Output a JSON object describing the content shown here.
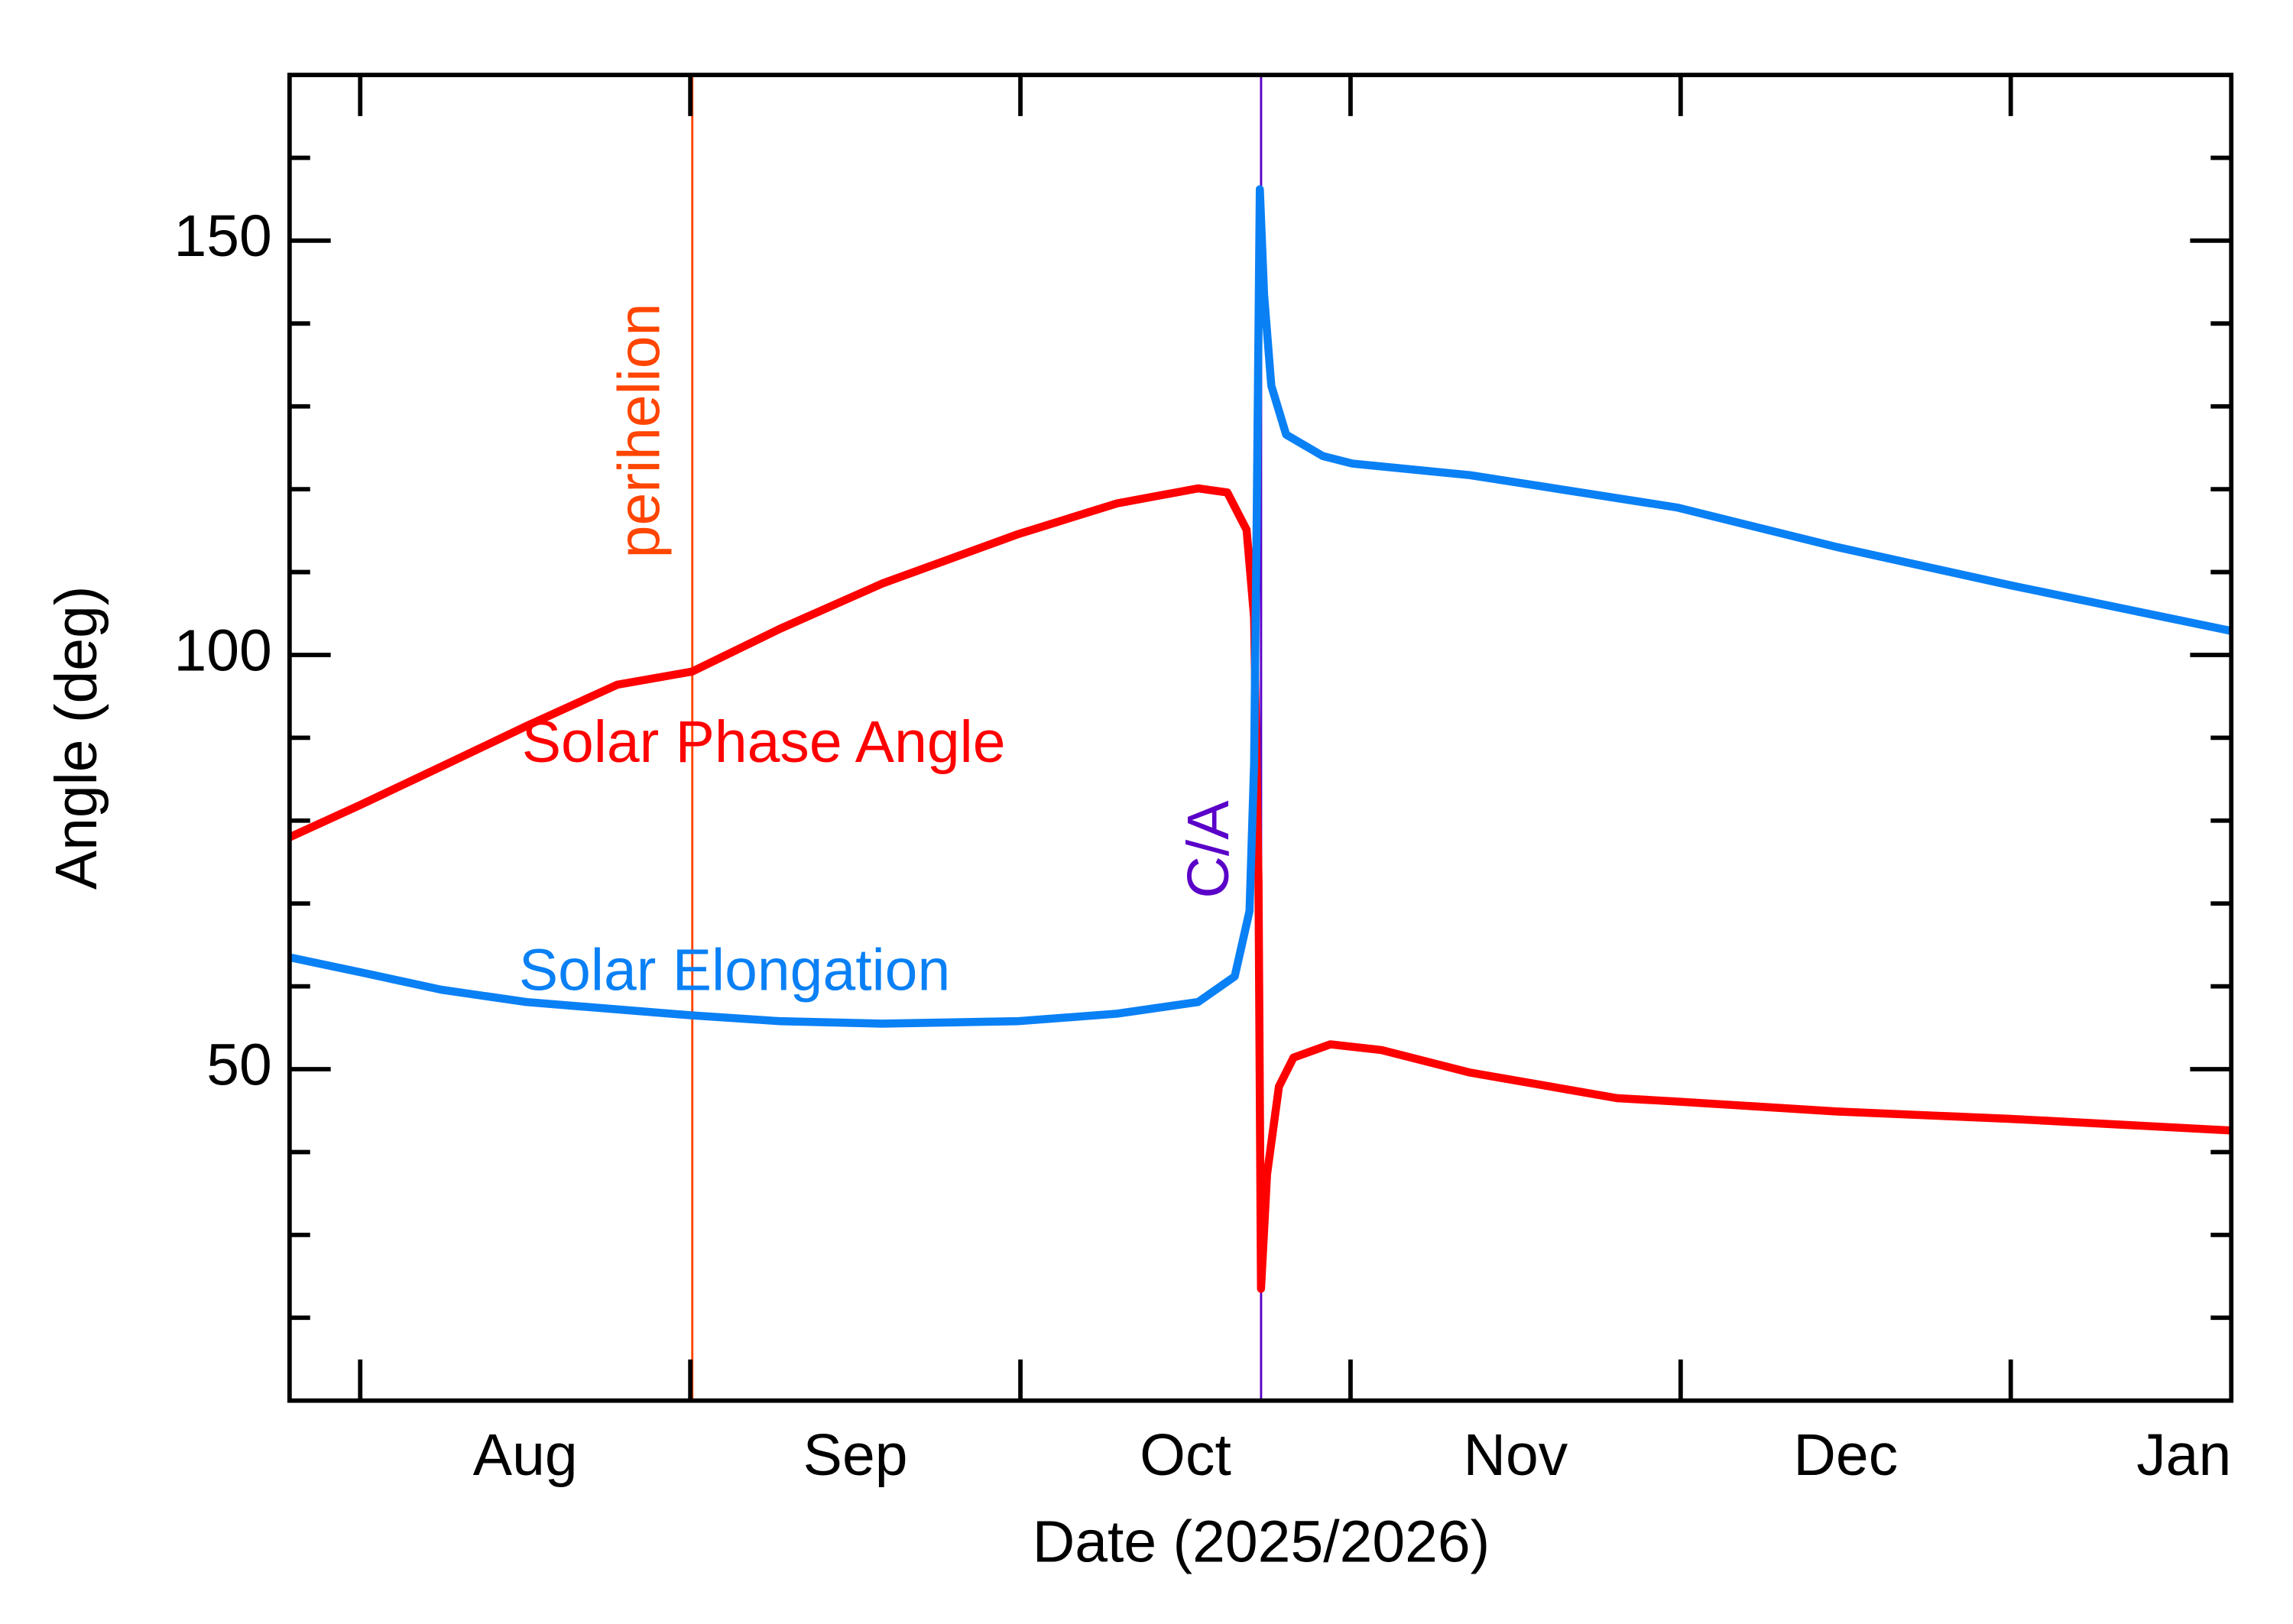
{
  "chart_data": {
    "type": "line",
    "x_label": "Date (2025/2026)",
    "y_label": "Angle (deg)",
    "xlim": [
      7.786,
      13.668
    ],
    "ylim": [
      10,
      170
    ],
    "xticks": [
      {
        "value": 8.5,
        "label": "Aug"
      },
      {
        "value": 9.5,
        "label": "Sep"
      },
      {
        "value": 10.5,
        "label": "Oct"
      },
      {
        "value": 11.5,
        "label": "Nov"
      },
      {
        "value": 12.5,
        "label": "Dec"
      },
      {
        "value": 13.5,
        "label": "Jan"
      }
    ],
    "xminor_ticks": [
      8,
      9,
      10,
      11,
      12,
      13
    ],
    "yticks": [
      50,
      100,
      150
    ],
    "yminor_ticks": [
      20,
      30,
      40,
      60,
      70,
      80,
      90,
      110,
      120,
      130,
      140,
      160
    ],
    "vlines": [
      {
        "x": 9.006,
        "label": "perihelion",
        "color": "#ff4500"
      },
      {
        "x": 10.729,
        "label": "C/A",
        "color": "#5a00c8"
      }
    ],
    "series": [
      {
        "name": "Solar Phase Angle",
        "color": "#ff0000",
        "x": [
          7.786,
          8,
          8.245,
          8.503,
          8.779,
          9.006,
          9.269,
          9.581,
          9.995,
          10.293,
          10.538,
          10.627,
          10.685,
          10.708,
          10.721,
          10.729,
          10.747,
          10.783,
          10.827,
          10.939,
          11.094,
          11.362,
          11.807,
          11.989,
          12.475,
          13.0,
          13.668
        ],
        "values": [
          78.0,
          81.9,
          86.5,
          91.4,
          96.4,
          98.0,
          103.1,
          108.6,
          114.6,
          118.3,
          120.1,
          119.6,
          115.1,
          104.5,
          72.7,
          23.5,
          37.3,
          47.9,
          51.4,
          53.0,
          52.3,
          49.6,
          46.5,
          46.1,
          44.9,
          44.0,
          42.6
        ]
      },
      {
        "name": "Solar Elongation",
        "color": "#0a80f5",
        "x": [
          7.786,
          8,
          8.245,
          8.503,
          9.006,
          9.269,
          9.581,
          9.995,
          10.293,
          10.538,
          10.649,
          10.694,
          10.708,
          10.716,
          10.725,
          10.738,
          10.76,
          10.805,
          10.916,
          11.005,
          11.362,
          11.989,
          12.475,
          13.0,
          13.668
        ],
        "values": [
          63.5,
          61.7,
          59.6,
          58.1,
          56.5,
          55.8,
          55.5,
          55.8,
          56.7,
          58.1,
          61.2,
          69.1,
          86.8,
          116.9,
          156.2,
          143.5,
          132.5,
          126.6,
          124.0,
          123.1,
          121.7,
          117.8,
          113.0,
          108.4,
          102.9
        ]
      }
    ]
  }
}
